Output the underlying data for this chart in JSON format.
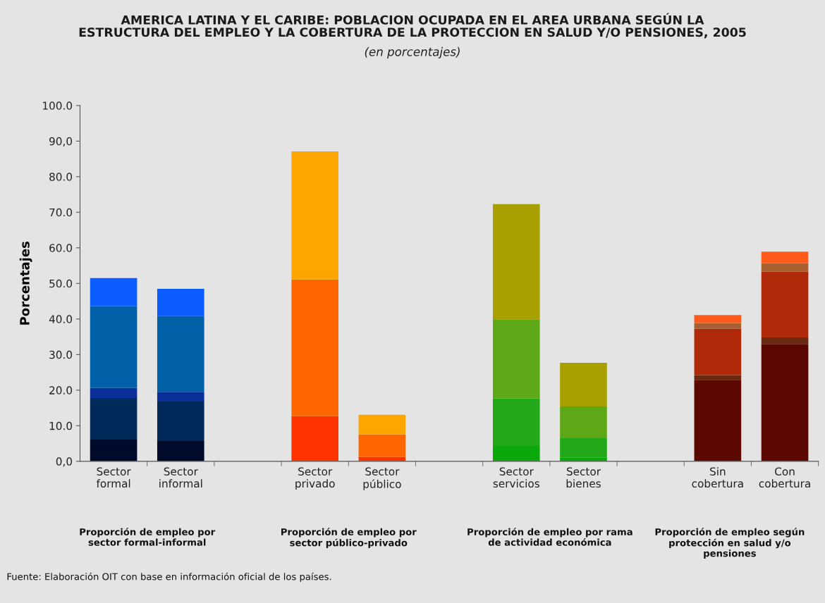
{
  "chart_data": {
    "type": "bar",
    "stacked": true,
    "title": "AMERICA LATINA Y EL CARIBE: POBLACION OCUPADA EN EL AREA URBANA SEGÚN LA\nESTRUCTURA DEL EMPLEO Y LA COBERTURA DE LA PROTECCION EN SALUD Y/O PENSIONES, 2005",
    "subtitle": "(en porcentajes)",
    "ylabel": "Porcentajes",
    "categories": [
      "Sector\nformal",
      "Sector\ninformal",
      null,
      "Sector\nprivado",
      "Sector\npúblico",
      null,
      "Sector\nservicios",
      "Sector\nbienes",
      null,
      "Sin\ncobertura",
      "Con\ncobertura"
    ],
    "series": [
      {
        "colors": [
          "#000a2a",
          "#000a2a",
          null,
          "#ff3300",
          "#ff3300",
          null,
          "#0aa80a",
          "#0aa80a",
          null,
          "#5a0800",
          "#5a0800"
        ],
        "values": [
          6.1,
          5.7,
          null,
          12.7,
          1.2,
          null,
          4.3,
          1.0,
          null,
          22.9,
          33.0
        ]
      },
      {
        "colors": [
          "#002a5a",
          "#002a5a",
          null,
          "#ff6600",
          "#ff6600",
          null,
          "#22a818",
          "#22a818",
          null,
          "#6a2a10",
          "#6a2a10"
        ],
        "values": [
          11.7,
          11.1,
          null,
          38.4,
          6.4,
          null,
          13.4,
          5.5,
          null,
          1.3,
          1.8
        ]
      },
      {
        "colors": [
          "#0a2f9a",
          "#0a2f9a",
          null,
          "#ffa500",
          "#ffa500",
          null,
          "#5ea818",
          "#5ea818",
          null,
          "#b02a0a",
          "#b02a0a"
        ],
        "values": [
          2.8,
          2.7,
          null,
          36.0,
          5.5,
          null,
          22.2,
          8.9,
          null,
          13.1,
          18.5
        ]
      },
      {
        "colors": [
          "#0060a8",
          "#0060a8",
          null,
          null,
          null,
          null,
          "#a8a000",
          "#a8a000",
          null,
          "#a86030",
          "#a86030"
        ],
        "values": [
          23.0,
          21.3,
          null,
          null,
          null,
          null,
          32.4,
          12.3,
          null,
          1.6,
          2.4
        ]
      },
      {
        "colors": [
          "#0a5cff",
          "#0a5cff",
          null,
          null,
          null,
          null,
          null,
          null,
          null,
          "#ff5a1a",
          "#ff5a1a"
        ],
        "values": [
          7.9,
          7.7,
          null,
          null,
          null,
          null,
          null,
          null,
          null,
          2.2,
          3.2
        ]
      }
    ],
    "ylim": [
      0,
      100
    ],
    "yticks": [
      {
        "value": 0,
        "label": "0,0"
      },
      {
        "value": 10,
        "label": "10.0"
      },
      {
        "value": 20,
        "label": "20.0"
      },
      {
        "value": 30,
        "label": "30.0"
      },
      {
        "value": 40,
        "label": "40.0"
      },
      {
        "value": 50,
        "label": "50.0"
      },
      {
        "value": 60,
        "label": "60.0"
      },
      {
        "value": 70,
        "label": "70.0"
      },
      {
        "value": 80,
        "label": "80.0"
      },
      {
        "value": 90,
        "label": "90,0"
      },
      {
        "value": 100,
        "label": "100.0"
      }
    ],
    "grid": false,
    "legend": false,
    "annotations": [
      "Proporción de empleo por\nsector formal-informal",
      "Proporción de empleo por\nsector público-privado",
      "Proporción de empleo por rama\nde actividad económica",
      "Proporción de empleo según\nprotección en salud y/o\npensiones",
      "Fuente: Elaboración OIT con base en información oficial de los países."
    ]
  }
}
